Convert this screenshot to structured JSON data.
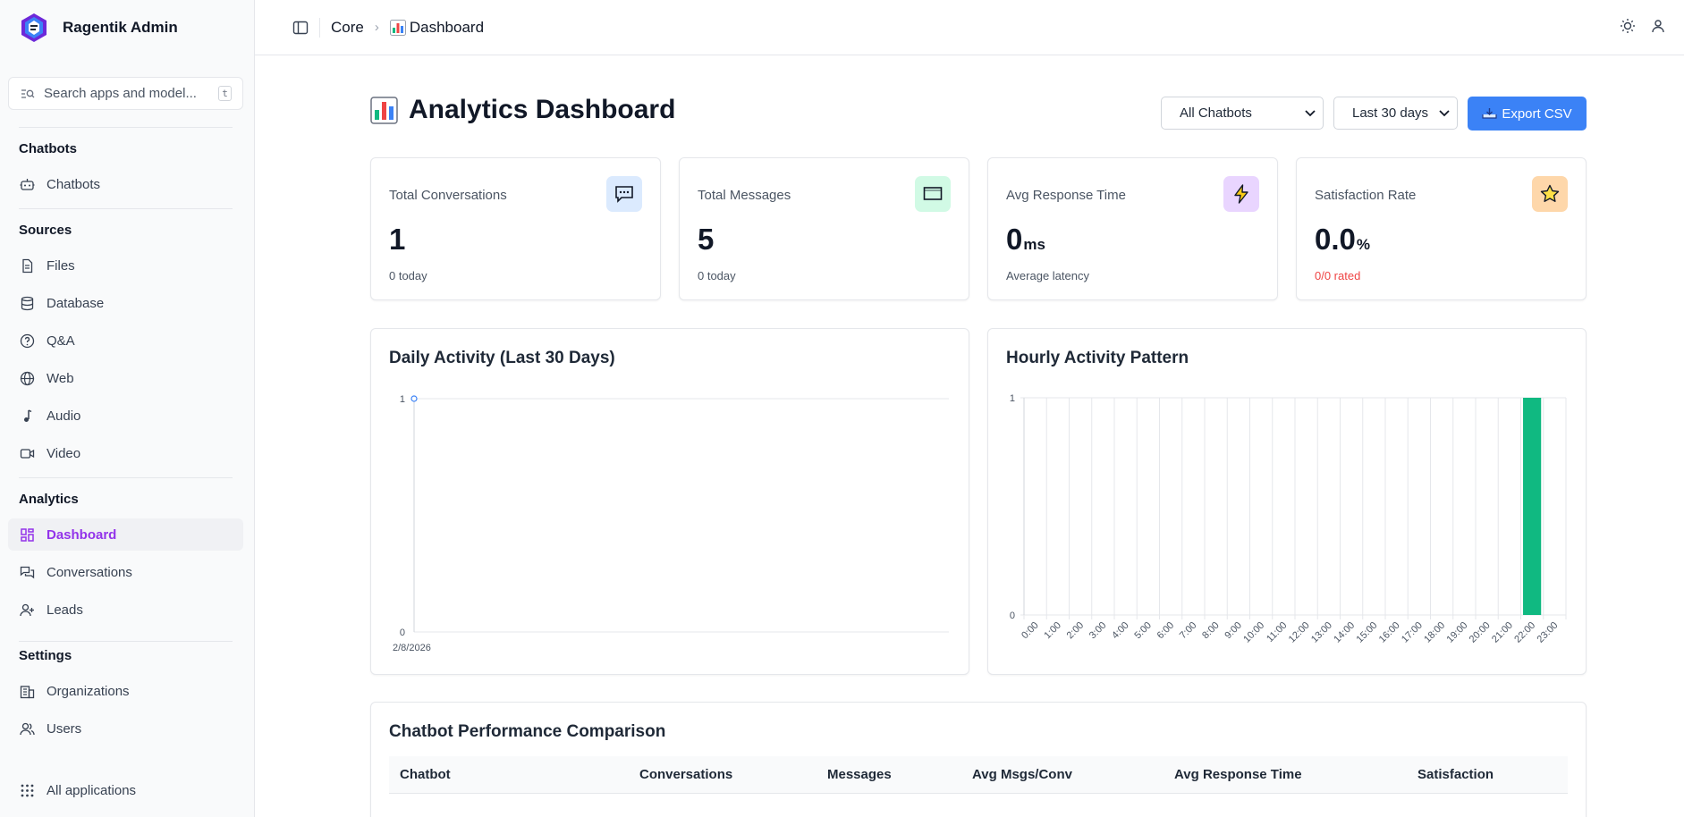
{
  "app": {
    "name": "Ragentik Admin"
  },
  "search": {
    "placeholder": "Search apps and model...",
    "shortcut": "t"
  },
  "sidebar": {
    "sections": [
      {
        "title": "Chatbots",
        "items": [
          {
            "label": "Chatbots",
            "icon": "robot-icon"
          }
        ]
      },
      {
        "title": "Sources",
        "items": [
          {
            "label": "Files",
            "icon": "file-icon"
          },
          {
            "label": "Database",
            "icon": "database-icon"
          },
          {
            "label": "Q&A",
            "icon": "help-circle-icon"
          },
          {
            "label": "Web",
            "icon": "globe-icon"
          },
          {
            "label": "Audio",
            "icon": "music-note-icon"
          },
          {
            "label": "Video",
            "icon": "video-icon"
          }
        ]
      },
      {
        "title": "Analytics",
        "items": [
          {
            "label": "Dashboard",
            "icon": "dashboard-icon",
            "active": true
          },
          {
            "label": "Conversations",
            "icon": "messages-icon"
          },
          {
            "label": "Leads",
            "icon": "user-plus-icon"
          }
        ]
      },
      {
        "title": "Settings",
        "items": [
          {
            "label": "Organizations",
            "icon": "building-icon"
          },
          {
            "label": "Users",
            "icon": "users-icon"
          }
        ]
      }
    ],
    "footer": {
      "label": "All applications",
      "icon": "grid-icon"
    }
  },
  "breadcrumb": {
    "root": "Core",
    "current": "Dashboard",
    "current_icon": "bar-chart-emoji-icon"
  },
  "page": {
    "title": "Analytics Dashboard",
    "chatbot_filter": {
      "selected": "All Chatbots"
    },
    "range_filter": {
      "selected": "Last 30 days"
    },
    "export_label": "Export CSV"
  },
  "stats": [
    {
      "label": "Total Conversations",
      "value": "1",
      "unit": "",
      "sub": "0 today",
      "icon": "chat-bubble-icon",
      "icon_bg": "#dbeafe",
      "sub_color": "#4b5563"
    },
    {
      "label": "Total Messages",
      "value": "5",
      "unit": "",
      "sub": "0 today",
      "icon": "message-square-icon",
      "icon_bg": "#d1fae5",
      "sub_color": "#4b5563"
    },
    {
      "label": "Avg Response Time",
      "value": "0",
      "unit": "ms",
      "sub": "Average latency",
      "icon": "lightning-icon",
      "icon_bg": "#e9d5ff",
      "sub_color": "#4b5563"
    },
    {
      "label": "Satisfaction Rate",
      "value": "0.0",
      "unit": "%",
      "sub": "0/0 rated",
      "icon": "star-icon",
      "icon_bg": "#fed7aa",
      "sub_color": "#ef4444"
    }
  ],
  "chart_data": [
    {
      "type": "line",
      "title": "Daily Activity (Last 30 Days)",
      "x": [
        "2/8/2026"
      ],
      "series": [
        {
          "values": [
            1
          ]
        }
      ],
      "ylim": [
        0,
        1
      ],
      "yticks": [
        0,
        1
      ],
      "grid": true,
      "color": "#3b82f6"
    },
    {
      "type": "bar",
      "title": "Hourly Activity Pattern",
      "categories": [
        "0:00",
        "1:00",
        "2:00",
        "3:00",
        "4:00",
        "5:00",
        "6:00",
        "7:00",
        "8:00",
        "9:00",
        "10:00",
        "11:00",
        "12:00",
        "13:00",
        "14:00",
        "15:00",
        "16:00",
        "17:00",
        "18:00",
        "19:00",
        "20:00",
        "21:00",
        "22:00",
        "23:00"
      ],
      "values": [
        0,
        0,
        0,
        0,
        0,
        0,
        0,
        0,
        0,
        0,
        0,
        0,
        0,
        0,
        0,
        0,
        0,
        0,
        0,
        0,
        0,
        0,
        1,
        0
      ],
      "ylim": [
        0,
        1
      ],
      "yticks": [
        0,
        1
      ],
      "grid": true,
      "color": "#10b981"
    }
  ],
  "performance": {
    "title": "Chatbot Performance Comparison",
    "columns": [
      "Chatbot",
      "Conversations",
      "Messages",
      "Avg Msgs/Conv",
      "Avg Response Time",
      "Satisfaction"
    ]
  }
}
